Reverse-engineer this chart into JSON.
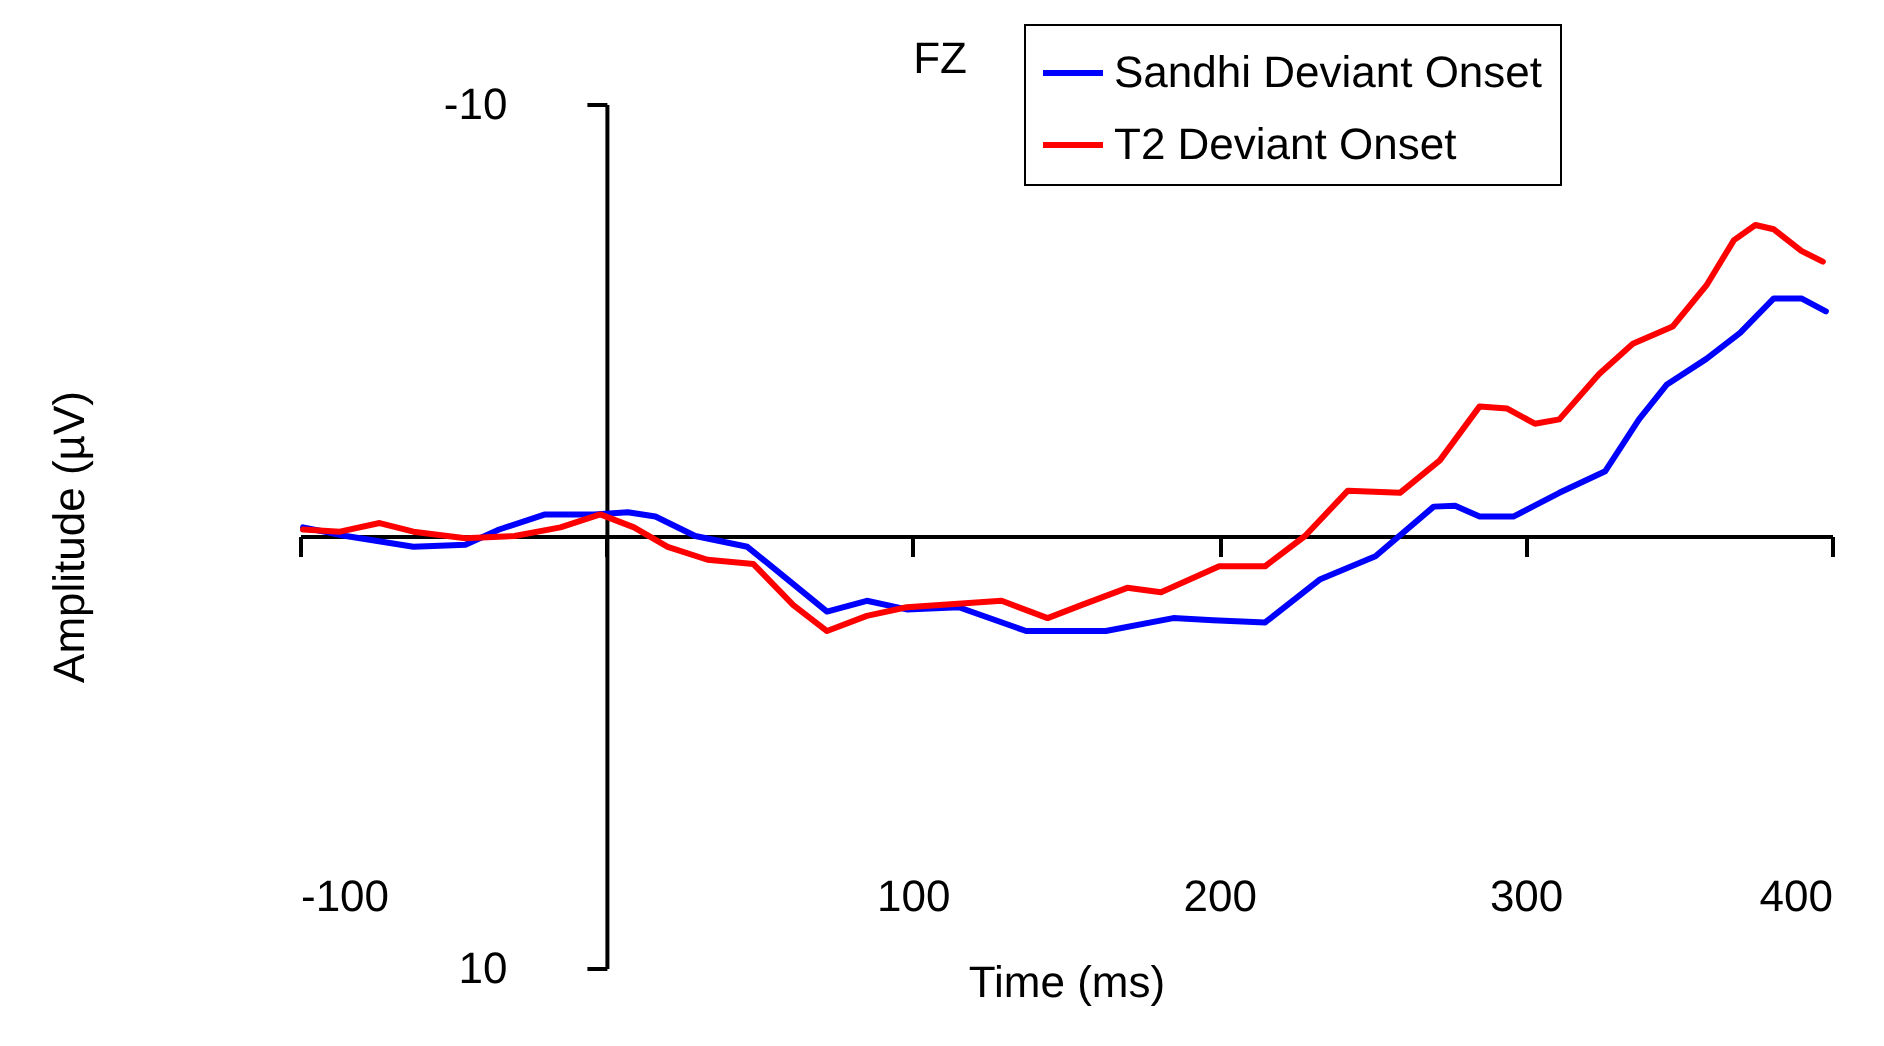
{
  "chart_data": {
    "type": "line",
    "title": "FZ",
    "xlabel": "Time (ms)",
    "ylabel": "Amplitude (µV)",
    "xlim": [
      -100,
      400
    ],
    "xticks": [
      -100,
      {
        "value": 0,
        "label": null
      },
      100,
      200,
      300,
      400
    ],
    "ylim": [
      10,
      -10
    ],
    "yticks": [
      -10,
      10
    ],
    "grid": false,
    "legend": "top right",
    "line_style": "solid",
    "marker": "none",
    "series": [
      {
        "name": "Sandhi Deviant Onset",
        "color": "#0000ff",
        "x": [
          -99,
          -85,
          -63,
          -46,
          -35,
          -20,
          -4,
          7,
          16,
          29,
          46,
          59,
          72,
          85,
          98,
          115,
          137,
          142,
          163,
          185,
          198,
          215,
          233,
          251,
          270,
          277,
          285,
          296,
          311,
          326,
          337,
          346,
          359,
          370,
          381,
          390,
          398
        ],
        "values": [
          -0.2,
          0,
          0.25,
          0.2,
          -0.15,
          -0.5,
          -0.5,
          -0.55,
          -0.45,
          0,
          0.25,
          1.0,
          1.75,
          1.5,
          1.7,
          1.65,
          2.2,
          2.2,
          2.2,
          1.9,
          1.95,
          2.0,
          1.0,
          0.47,
          -0.68,
          -0.7,
          -0.45,
          -0.45,
          -1.0,
          -1.5,
          -2.7,
          -3.5,
          -4.1,
          -4.7,
          -5.5,
          -5.5,
          -5.2
        ]
      },
      {
        "name": "T2 Deviant Onset",
        "color": "#ff0000",
        "x": [
          -99,
          -87,
          -74,
          -63,
          -46,
          -30,
          -15,
          -2,
          9,
          20,
          33,
          48,
          61,
          72,
          85,
          98,
          129,
          144,
          155,
          170,
          181,
          200,
          215,
          228,
          242,
          259,
          272,
          285,
          294,
          303,
          311,
          324,
          335,
          348,
          359,
          368,
          375,
          381,
          390,
          397
        ],
        "values": [
          -0.15,
          -0.1,
          -0.3,
          -0.1,
          0.05,
          0,
          -0.2,
          -0.5,
          -0.2,
          0.25,
          0.55,
          0.65,
          1.6,
          2.2,
          1.85,
          1.65,
          1.5,
          1.9,
          1.6,
          1.2,
          1.3,
          0.7,
          0.7,
          0,
          -1.05,
          -1.0,
          -1.75,
          -3.0,
          -2.95,
          -2.6,
          -2.7,
          -3.75,
          -4.45,
          -4.85,
          -5.8,
          -6.85,
          -7.2,
          -7.1,
          -6.6,
          -6.35
        ]
      }
    ]
  }
}
